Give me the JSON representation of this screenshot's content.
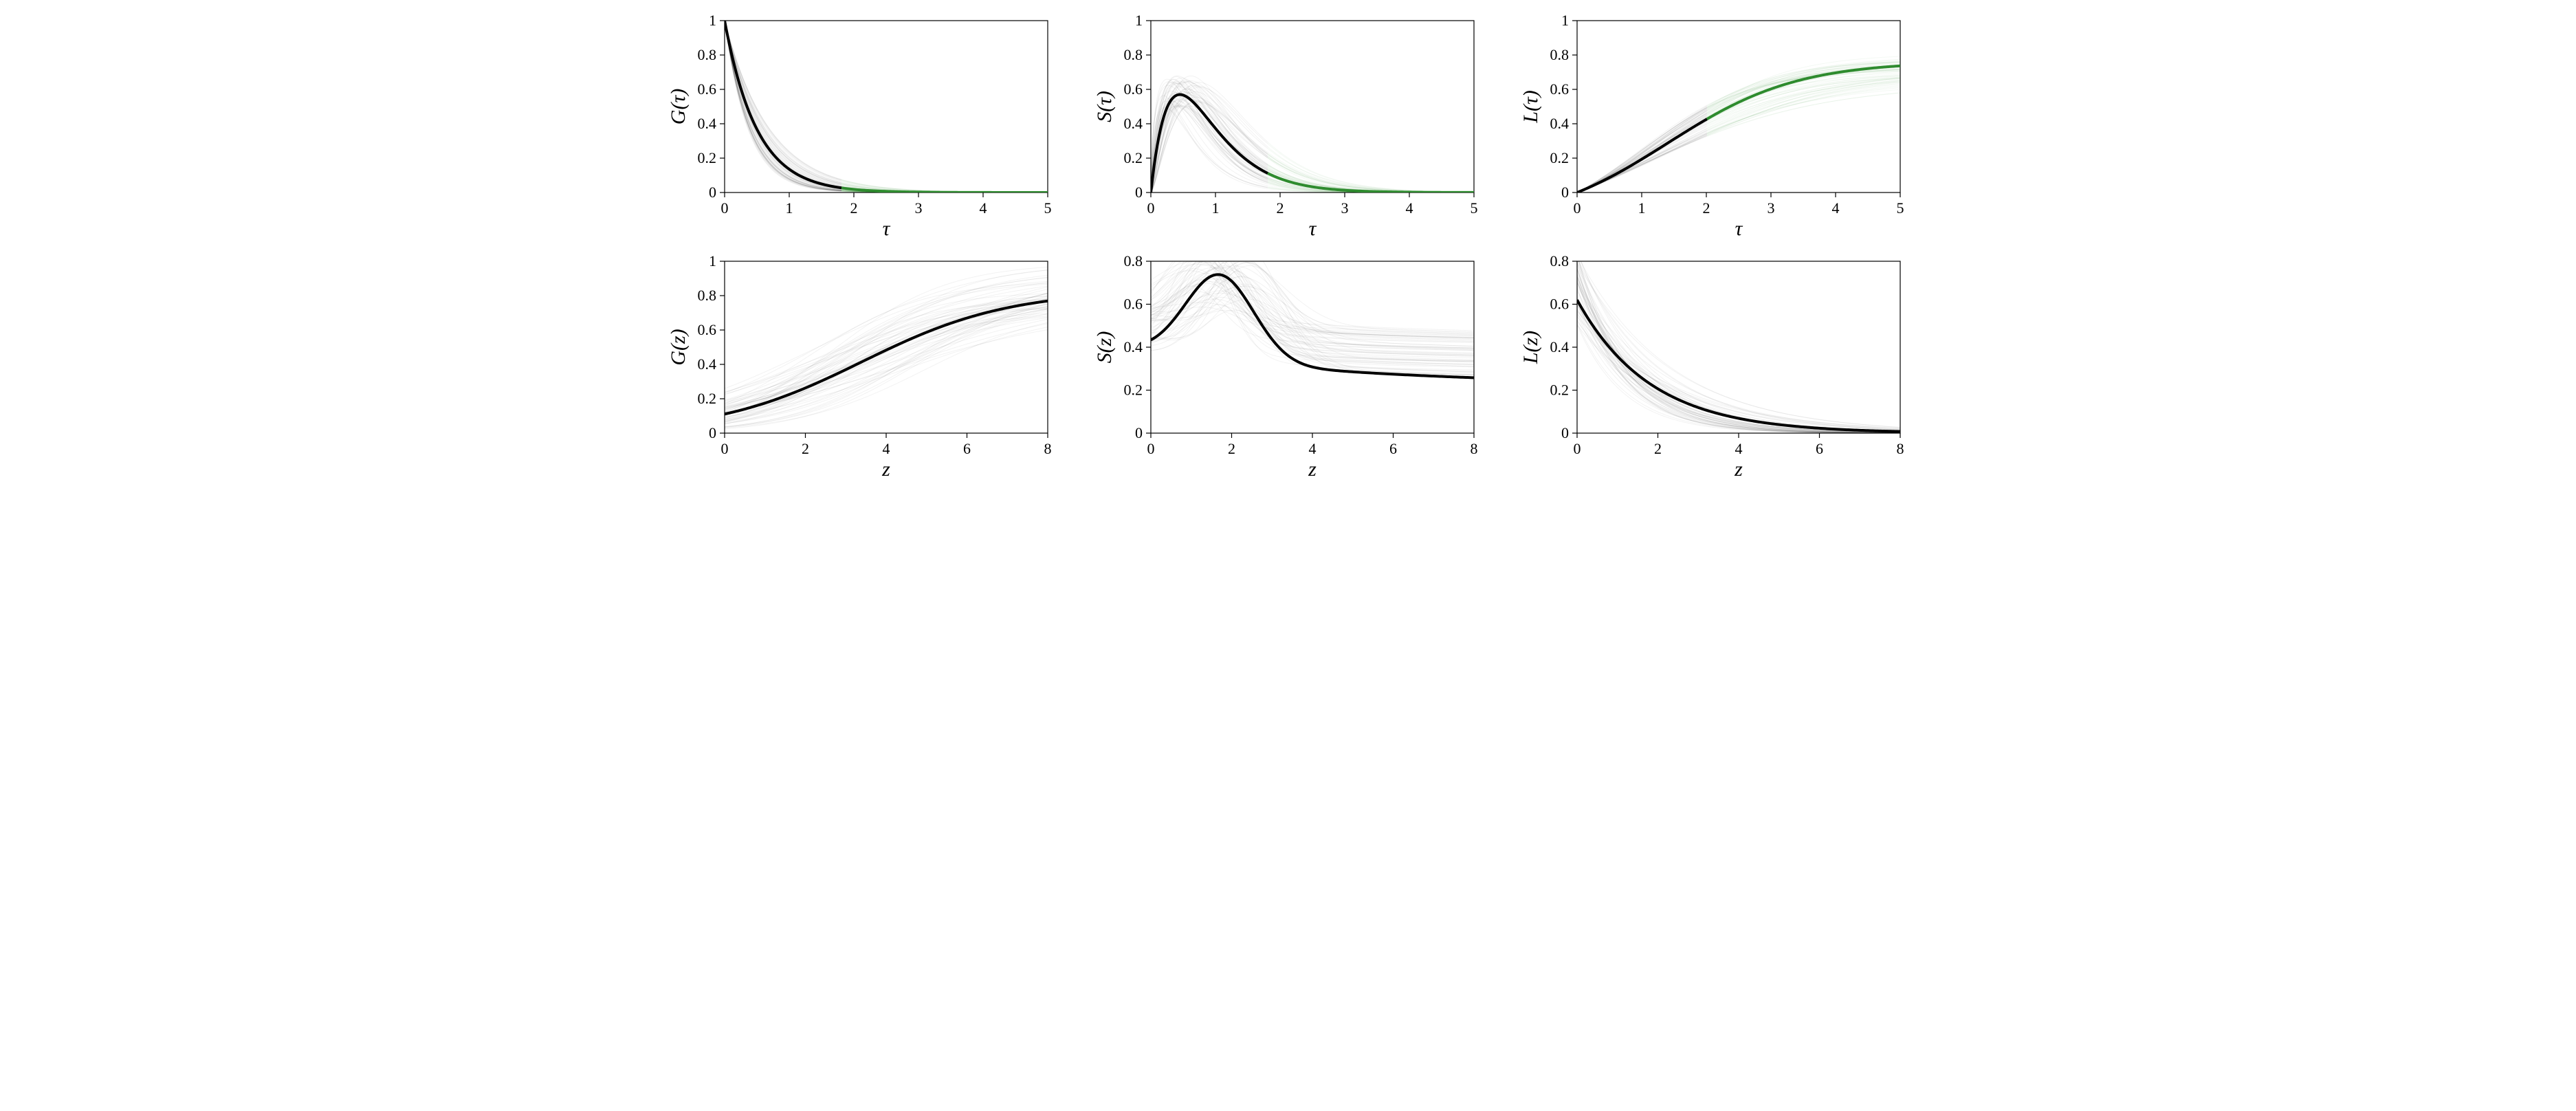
{
  "figure": {
    "background_color": "#ffffff",
    "grid": {
      "rows": 2,
      "cols": 3
    },
    "font_family": "Times New Roman",
    "axis_title_fontsize": 30,
    "tick_fontsize": 22,
    "line_width_main": 4,
    "line_width_ensemble": 1,
    "ensemble_alpha": 0.05,
    "colors": {
      "black": "#000000",
      "green": "#2e8b2e",
      "ensemble_gray": "#000000"
    },
    "n_ensemble": 60,
    "panels": [
      {
        "id": "G_tau",
        "row": 0,
        "col": 0,
        "type": "line",
        "xlabel": "τ",
        "ylabel": "G(τ)",
        "xlim": [
          0,
          5
        ],
        "ylim": [
          0,
          1
        ],
        "xticks": [
          0,
          1,
          2,
          3,
          4,
          5
        ],
        "yticks": [
          0,
          0.2,
          0.4,
          0.6,
          0.8,
          1
        ],
        "split_x": 1.8,
        "main_fn": "exp2tau",
        "ensemble_noise": {
          "rate_lo": 1.4,
          "rate_hi": 2.8
        }
      },
      {
        "id": "S_tau",
        "row": 0,
        "col": 1,
        "type": "line",
        "xlabel": "τ",
        "ylabel": "S(τ)",
        "xlim": [
          0,
          5
        ],
        "ylim": [
          0,
          1
        ],
        "xticks": [
          0,
          1,
          2,
          3,
          4,
          5
        ],
        "yticks": [
          0,
          0.2,
          0.4,
          0.6,
          0.8,
          1
        ],
        "split_x": 1.8,
        "main_fn": "gamma_like",
        "ensemble_noise": {
          "shape_lo": 1.5,
          "shape_hi": 2.5,
          "scale_lo": 0.35,
          "scale_hi": 0.55
        }
      },
      {
        "id": "L_tau",
        "row": 0,
        "col": 2,
        "type": "line",
        "xlabel": "τ",
        "ylabel": "L(τ)",
        "xlim": [
          0,
          5
        ],
        "ylim": [
          0,
          1
        ],
        "xticks": [
          0,
          1,
          2,
          3,
          4,
          5
        ],
        "yticks": [
          0,
          0.2,
          0.4,
          0.6,
          0.8,
          1
        ],
        "split_x": 2.0,
        "main_fn": "sigmoid_rise",
        "ensemble_noise": {
          "rate_lo": 0.7,
          "rate_hi": 1.2,
          "shift_lo": 0.9,
          "shift_hi": 1.5
        }
      },
      {
        "id": "G_z",
        "row": 1,
        "col": 0,
        "type": "line",
        "xlabel": "z",
        "ylabel": "G(z)",
        "xlim": [
          0,
          8
        ],
        "ylim": [
          0,
          1
        ],
        "xticks": [
          0,
          2,
          4,
          6,
          8
        ],
        "yticks": [
          0,
          0.2,
          0.4,
          0.6,
          0.8,
          1
        ],
        "split_x": null,
        "main_fn": "sigmoid_z",
        "ensemble_noise": {
          "rate_lo": 0.35,
          "rate_hi": 0.8,
          "shift_lo": 2.0,
          "shift_hi": 5.0
        }
      },
      {
        "id": "S_z",
        "row": 1,
        "col": 1,
        "type": "line",
        "xlabel": "z",
        "ylabel": "S(z)",
        "xlim": [
          0,
          8
        ],
        "ylim": [
          0,
          0.8
        ],
        "xticks": [
          0,
          2,
          4,
          6,
          8
        ],
        "yticks": [
          0,
          0.2,
          0.4,
          0.6,
          0.8
        ],
        "split_x": null,
        "main_fn": "Sz",
        "ensemble_noise": {
          "peak_lo": 0.5,
          "peak_hi": 0.8,
          "loc_lo": 1.0,
          "loc_hi": 2.5,
          "decay_lo": 0.15,
          "decay_hi": 0.35,
          "base_lo": 0.25,
          "base_hi": 0.45
        }
      },
      {
        "id": "L_z",
        "row": 1,
        "col": 2,
        "type": "line",
        "xlabel": "z",
        "ylabel": "L(z)",
        "xlim": [
          0,
          8
        ],
        "ylim": [
          0,
          0.8
        ],
        "xticks": [
          0,
          2,
          4,
          6,
          8
        ],
        "yticks": [
          0,
          0.2,
          0.4,
          0.6,
          0.8
        ],
        "split_x": null,
        "main_fn": "Lz",
        "ensemble_noise": {
          "amp_lo": 0.5,
          "amp_hi": 0.85,
          "rate_lo": 0.4,
          "rate_hi": 0.9
        }
      }
    ]
  }
}
